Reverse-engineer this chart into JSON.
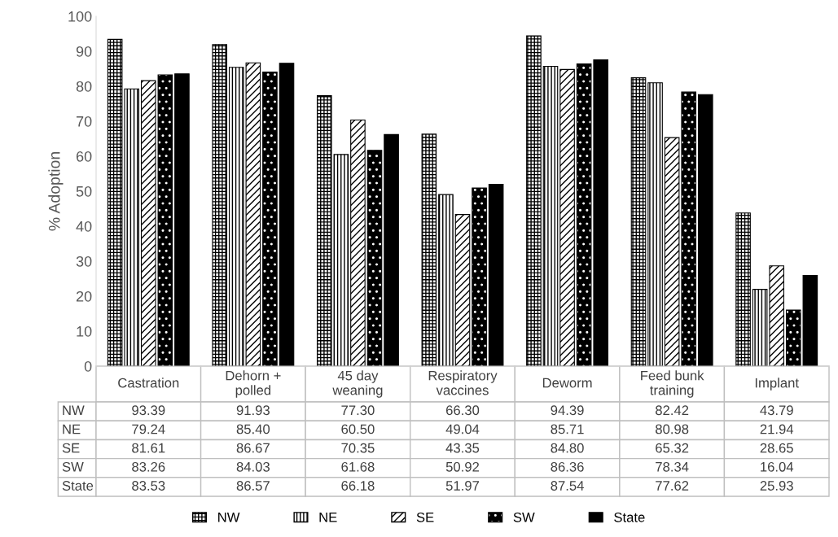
{
  "chart_data": {
    "type": "bar",
    "ylabel": "% Adoption",
    "categories": [
      "Castration",
      "Dehorn + polled",
      "45 day weaning",
      "Respiratory vaccines",
      "Deworm",
      "Feed bunk training",
      "Implant"
    ],
    "series": [
      {
        "name": "NW",
        "color": "#000000",
        "values": [
          93.39,
          91.93,
          77.3,
          66.3,
          94.39,
          82.42,
          43.79
        ],
        "value_labels": [
          "93.39",
          "91.93",
          "77.30",
          "66.30",
          "94.39",
          "82.42",
          "43.79"
        ]
      },
      {
        "name": "NE",
        "color": "#000000",
        "values": [
          79.24,
          85.4,
          60.5,
          49.04,
          85.71,
          80.98,
          21.94
        ],
        "value_labels": [
          "79.24",
          "85.40",
          "60.50",
          "49.04",
          "85.71",
          "80.98",
          "21.94"
        ]
      },
      {
        "name": "SE",
        "color": "#000000",
        "values": [
          81.61,
          86.67,
          70.35,
          43.35,
          84.8,
          65.32,
          28.65
        ],
        "value_labels": [
          "81.61",
          "86.67",
          "70.35",
          "43.35",
          "84.80",
          "65.32",
          "28.65"
        ]
      },
      {
        "name": "SW",
        "color": "#000000",
        "values": [
          83.26,
          84.03,
          61.68,
          50.92,
          86.36,
          78.34,
          16.04
        ],
        "value_labels": [
          "83.26",
          "84.03",
          "61.68",
          "50.92",
          "86.36",
          "78.34",
          "16.04"
        ]
      },
      {
        "name": "State",
        "color": "#000000",
        "values": [
          83.53,
          86.57,
          66.18,
          51.97,
          87.54,
          77.62,
          25.93
        ],
        "value_labels": [
          "83.53",
          "86.57",
          "66.18",
          "51.97",
          "87.54",
          "77.62",
          "25.93"
        ]
      }
    ],
    "ylim": [
      0,
      100
    ],
    "yticks": [
      0,
      10,
      20,
      30,
      40,
      50,
      60,
      70,
      80,
      90,
      100
    ],
    "grid": false,
    "legend": "bottom"
  }
}
